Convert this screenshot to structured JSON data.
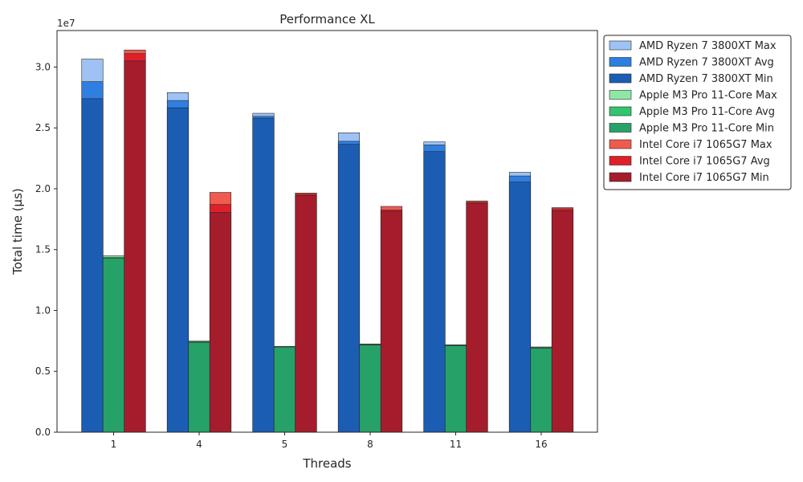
{
  "chart_data": {
    "type": "bar",
    "title": "Performance XL",
    "xlabel": "Threads",
    "ylabel": "Total time (µs)",
    "y_offset_text": "1e7",
    "ylim": [
      0,
      33000000
    ],
    "yticks": [
      0,
      5000000,
      10000000,
      15000000,
      20000000,
      25000000,
      30000000
    ],
    "ytick_labels": [
      "0.0",
      "0.5",
      "1.0",
      "1.5",
      "2.0",
      "2.5",
      "3.0"
    ],
    "categories": [
      "1",
      "4",
      "5",
      "8",
      "11",
      "16"
    ],
    "grid": false,
    "legend_position": "outside-right",
    "series": [
      {
        "name": "AMD Ryzen 7 3800XT Max",
        "color": "#9ec2f4",
        "values": [
          30650000,
          27900000,
          26200000,
          24600000,
          23850000,
          21350000
        ]
      },
      {
        "name": "AMD Ryzen 7 3800XT Avg",
        "color": "#2f7fe0",
        "values": [
          28800000,
          27250000,
          25950000,
          23900000,
          23600000,
          21050000
        ]
      },
      {
        "name": "AMD Ryzen 7 3800XT Min",
        "color": "#1c5db4",
        "values": [
          27400000,
          26650000,
          25800000,
          23650000,
          23050000,
          20550000
        ]
      },
      {
        "name": "Apple M3 Pro 11-Core Max",
        "color": "#8ee8a4",
        "values": [
          14500000,
          7500000,
          7050000,
          7250000,
          7180000,
          7000000
        ]
      },
      {
        "name": "Apple M3 Pro 11-Core Avg",
        "color": "#33c46e",
        "values": [
          14350000,
          7420000,
          7020000,
          7200000,
          7150000,
          6950000
        ]
      },
      {
        "name": "Apple M3 Pro 11-Core Min",
        "color": "#26a269",
        "values": [
          14280000,
          7350000,
          7000000,
          7150000,
          7120000,
          6900000
        ]
      },
      {
        "name": "Intel Core i7 1065G7 Max",
        "color": "#f05a4f",
        "values": [
          31400000,
          19700000,
          19650000,
          18550000,
          19000000,
          18450000
        ]
      },
      {
        "name": "Intel Core i7 1065G7 Avg",
        "color": "#e02028",
        "values": [
          31100000,
          18700000,
          19550000,
          18250000,
          18900000,
          18350000
        ]
      },
      {
        "name": "Intel Core i7 1065G7 Min",
        "color": "#a51d2d",
        "values": [
          30500000,
          18050000,
          19450000,
          18150000,
          18800000,
          18200000
        ]
      }
    ]
  }
}
